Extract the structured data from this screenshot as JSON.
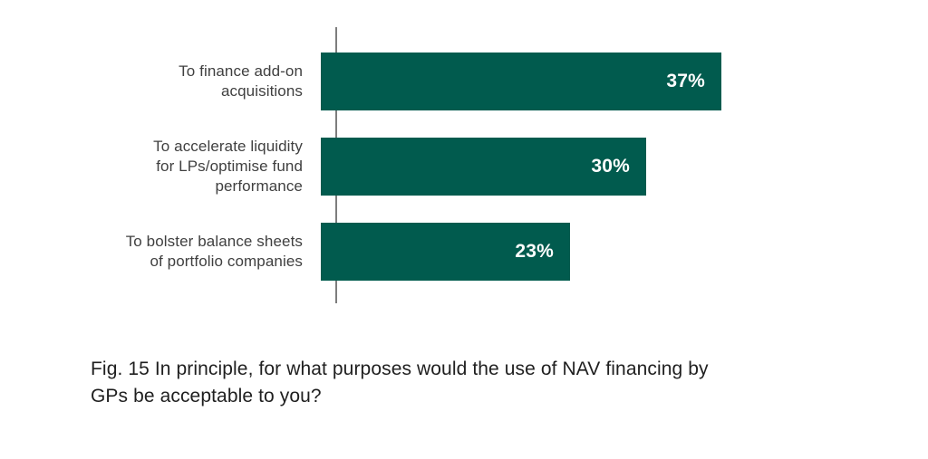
{
  "chart_data": {
    "type": "bar",
    "orientation": "horizontal",
    "title": "",
    "caption": "Fig. 15 In principle, for what purposes would the use of NAV financing by\nGPs be acceptable to you?",
    "categories": [
      "To finance add-on\nacquisitions",
      "To accelerate liquidity\nfor LPs/optimise fund\nperformance",
      "To bolster balance sheets\nof portfolio companies"
    ],
    "values": [
      37,
      30,
      23
    ],
    "display_values": [
      "37%",
      "30%",
      "23%"
    ],
    "xlim": [
      0,
      54.7
    ],
    "xlabel": "",
    "ylabel": "",
    "grid": false,
    "legend": false,
    "bar_color": "#015b4e",
    "value_label_color": "#ffffff",
    "axis_line_color": "#7d7d7d",
    "category_label_color": "#404040"
  }
}
